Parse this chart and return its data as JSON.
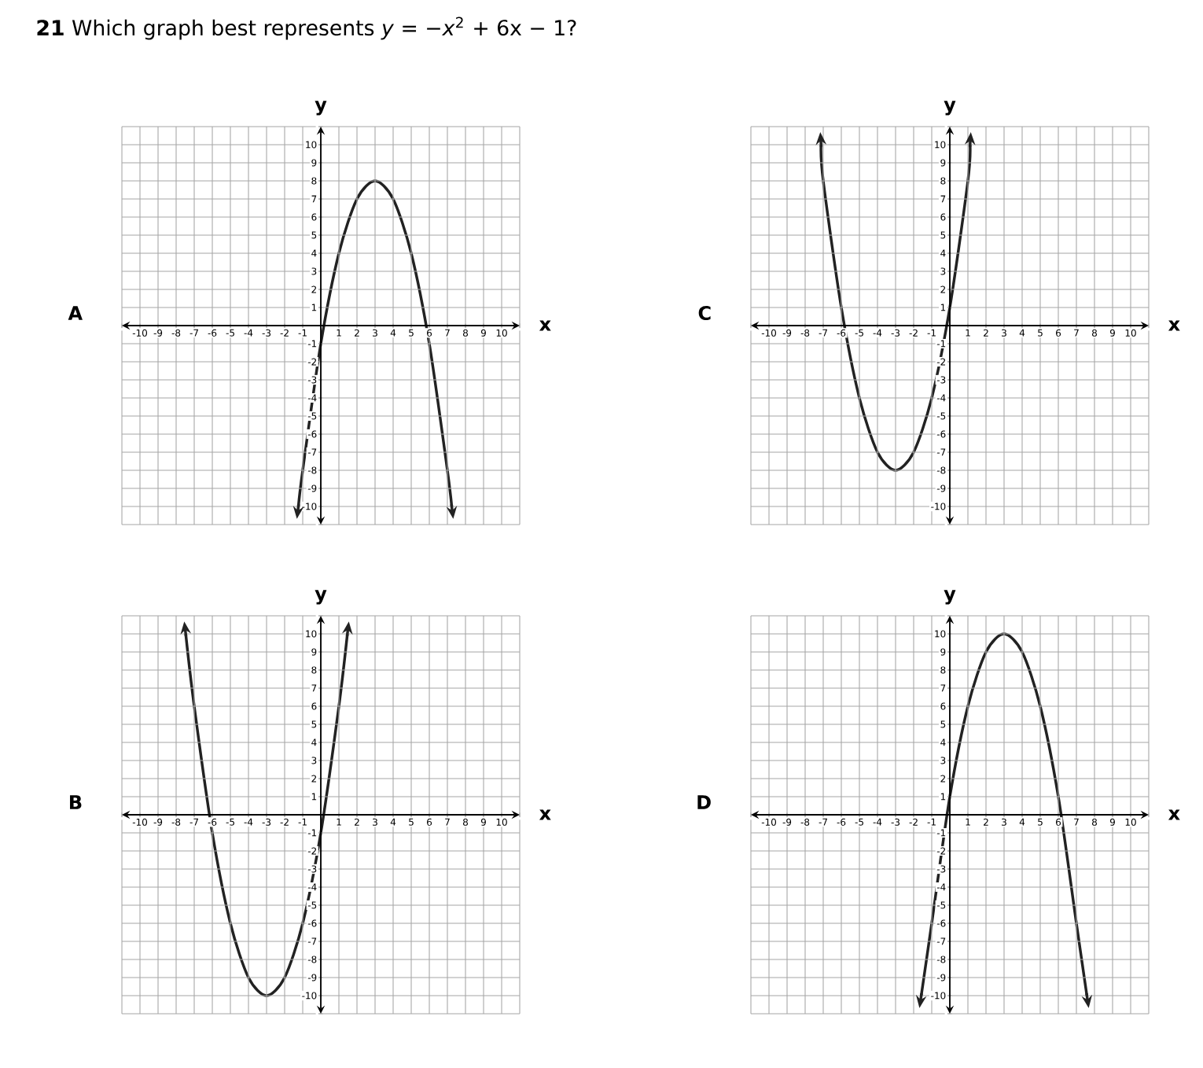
{
  "chart_data": [
    {
      "type": "other",
      "title": "**21** Which graph best represents *y* = −*x*$^{2}$ + 6x − 1?"
    },
    {
      "type": "line",
      "title": "A",
      "xlabel": "x",
      "ylabel": "y",
      "xlim": [
        -11,
        11
      ],
      "ylim": [
        -11,
        11
      ],
      "grid": true,
      "marker": "none",
      "line_style": "solid",
      "xticks": [
        {
          "value": -11,
          "label": null
        },
        -10,
        -9,
        -8,
        -7,
        -6,
        -5,
        -4,
        -3,
        -2,
        -1,
        {
          "value": 0,
          "label": null
        },
        1,
        2,
        3,
        4,
        5,
        6,
        7,
        8,
        9,
        10,
        {
          "value": 11,
          "label": null
        }
      ],
      "yticks": [
        {
          "value": -11,
          "label": null
        },
        -10,
        -9,
        -8,
        -7,
        -6,
        -5,
        -4,
        -3,
        -2,
        -1,
        {
          "value": 0,
          "label": null
        },
        1,
        2,
        3,
        4,
        5,
        6,
        7,
        8,
        9,
        10,
        {
          "value": 11,
          "label": null
        }
      ],
      "series": [
        {
          "color": "#222222",
          "x": [
            -1.24,
            -1,
            0,
            1,
            2,
            3,
            4,
            5,
            6,
            7,
            7.24
          ],
          "values": [
            -10,
            -8,
            -1,
            4,
            7,
            8,
            7,
            4,
            -1,
            -8,
            -10
          ]
        }
      ]
    },
    {
      "type": "line",
      "title": "C",
      "xlabel": "x",
      "ylabel": "y",
      "xlim": [
        -11,
        11
      ],
      "ylim": [
        -11,
        11
      ],
      "grid": true,
      "marker": "none",
      "line_style": "solid",
      "xticks": [
        {
          "value": -11,
          "label": null
        },
        -10,
        -9,
        -8,
        -7,
        -6,
        -5,
        -4,
        -3,
        -2,
        -1,
        {
          "value": 0,
          "label": null
        },
        1,
        2,
        3,
        4,
        5,
        6,
        7,
        8,
        9,
        10,
        {
          "value": 11,
          "label": null
        }
      ],
      "yticks": [
        {
          "value": -11,
          "label": null
        },
        -10,
        -9,
        -8,
        -7,
        -6,
        -5,
        -4,
        -3,
        -2,
        -1,
        {
          "value": 0,
          "label": null
        },
        1,
        2,
        3,
        4,
        5,
        6,
        7,
        8,
        9,
        10,
        {
          "value": 11,
          "label": null
        }
      ],
      "series": [
        {
          "color": "#222222",
          "x": [
            -7.12,
            -7,
            -6,
            -5,
            -4,
            -3,
            -2,
            -1,
            0,
            1,
            1.12
          ],
          "values": [
            10,
            8,
            1,
            -4,
            -7,
            -8,
            -7,
            -4,
            1,
            8,
            10
          ]
        }
      ]
    },
    {
      "type": "line",
      "title": "B",
      "xlabel": "x",
      "ylabel": "y",
      "xlim": [
        -11,
        11
      ],
      "ylim": [
        -11,
        11
      ],
      "grid": true,
      "marker": "none",
      "line_style": "solid",
      "xticks": [
        {
          "value": -11,
          "label": null
        },
        -10,
        -9,
        -8,
        -7,
        -6,
        -5,
        -4,
        -3,
        -2,
        -1,
        {
          "value": 0,
          "label": null
        },
        1,
        2,
        3,
        4,
        5,
        6,
        7,
        8,
        9,
        10,
        {
          "value": 11,
          "label": null
        }
      ],
      "yticks": [
        {
          "value": -11,
          "label": null
        },
        -10,
        -9,
        -8,
        -7,
        -6,
        -5,
        -4,
        -3,
        -2,
        -1,
        {
          "value": 0,
          "label": null
        },
        1,
        2,
        3,
        4,
        5,
        6,
        7,
        8,
        9,
        10,
        {
          "value": 11,
          "label": null
        }
      ],
      "series": [
        {
          "color": "#222222",
          "x": [
            -7.47,
            -7,
            -6,
            -5,
            -4,
            -3,
            -2,
            -1,
            0,
            1,
            1.47
          ],
          "values": [
            10,
            6,
            -1,
            -6,
            -9,
            -10,
            -9,
            -6,
            -1,
            6,
            10
          ]
        }
      ]
    },
    {
      "type": "line",
      "title": "D",
      "xlabel": "x",
      "ylabel": "y",
      "xlim": [
        -11,
        11
      ],
      "ylim": [
        -11,
        11
      ],
      "grid": true,
      "marker": "none",
      "line_style": "solid",
      "xticks": [
        {
          "value": -11,
          "label": null
        },
        -10,
        -9,
        -8,
        -7,
        -6,
        -5,
        -4,
        -3,
        -2,
        -1,
        {
          "value": 0,
          "label": null
        },
        1,
        2,
        3,
        4,
        5,
        6,
        7,
        8,
        9,
        10,
        {
          "value": 11,
          "label": null
        }
      ],
      "yticks": [
        {
          "value": -11,
          "label": null
        },
        -10,
        -9,
        -8,
        -7,
        -6,
        -5,
        -4,
        -3,
        -2,
        -1,
        {
          "value": 0,
          "label": null
        },
        1,
        2,
        3,
        4,
        5,
        6,
        7,
        8,
        9,
        10,
        {
          "value": 11,
          "label": null
        }
      ],
      "series": [
        {
          "color": "#222222",
          "x": [
            -1.58,
            -1,
            0,
            1,
            2,
            3,
            4,
            5,
            6,
            7,
            7.58
          ],
          "values": [
            -10,
            -6,
            1,
            6,
            9,
            10,
            9,
            6,
            1,
            -6,
            -10
          ]
        }
      ]
    }
  ]
}
